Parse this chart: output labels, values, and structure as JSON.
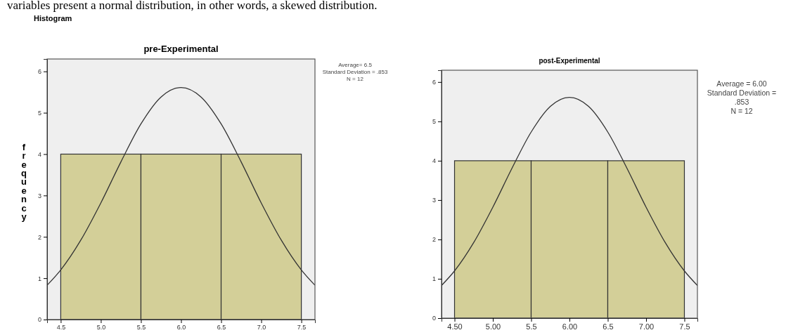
{
  "chart_data": [
    {
      "type": "histogram",
      "title": "pre-Experimental",
      "ylabel": "frequency",
      "annotations": [
        "variables present a normal distribution, in other words, a skewed distribution.",
        "Histogram",
        "Average= 6.5",
        "Standard Deviation = .853",
        "N = 12"
      ],
      "bins": [
        4.5,
        5.5,
        6.5,
        7.5
      ],
      "values": [
        4,
        4,
        4
      ],
      "color": "#d3cf98",
      "series": [
        {
          "type": "line",
          "color": "#333333",
          "x": [
            4.33,
            4.5,
            4.75,
            5.0,
            5.25,
            5.5,
            5.75,
            6.0,
            6.25,
            6.5,
            6.75,
            7.0,
            7.25,
            7.5,
            7.67
          ],
          "values": [
            0.83,
            1.2,
            1.92,
            2.82,
            3.81,
            4.73,
            5.38,
            5.61,
            5.38,
            4.73,
            3.81,
            2.82,
            1.92,
            1.2,
            0.83
          ]
        }
      ],
      "xlim": [
        4.33,
        7.67
      ],
      "xticks": [
        4.5,
        {
          "value": 5,
          "label": "5.0"
        },
        5.5,
        {
          "value": 6,
          "label": "6.0"
        },
        6.5,
        {
          "value": 7,
          "label": "7.0"
        },
        7.5
      ],
      "ylim": [
        0,
        6.3
      ],
      "yticks": [
        0,
        1,
        2,
        3,
        4,
        5,
        6
      ]
    },
    {
      "type": "histogram",
      "title": "post-Experimental",
      "annotations": [
        "Average = 6.00",
        "Standard Deviation = .853",
        "N = 12"
      ],
      "bins": [
        4.5,
        5.5,
        6.5,
        7.5
      ],
      "values": [
        4,
        4,
        4
      ],
      "color": "#d3cf98",
      "series": [
        {
          "type": "line",
          "color": "#333333",
          "x": [
            4.33,
            4.5,
            4.75,
            5.0,
            5.25,
            5.5,
            5.75,
            6.0,
            6.25,
            6.5,
            6.75,
            7.0,
            7.25,
            7.5,
            7.67
          ],
          "values": [
            0.83,
            1.2,
            1.92,
            2.82,
            3.81,
            4.73,
            5.38,
            5.61,
            5.38,
            4.73,
            3.81,
            2.82,
            1.92,
            1.2,
            0.83
          ]
        }
      ],
      "xlim": [
        4.33,
        7.67
      ],
      "xticks": [
        {
          "value": 4.5,
          "label": "4.50"
        },
        {
          "value": 5,
          "label": "5.00"
        },
        5.5,
        {
          "value": 6,
          "label": "6.00"
        },
        6.5,
        {
          "value": 7,
          "label": "7.00"
        },
        7.5
      ],
      "ylim": [
        0,
        6.3
      ],
      "yticks": [
        0,
        1,
        2,
        3,
        4,
        5,
        6
      ]
    }
  ]
}
